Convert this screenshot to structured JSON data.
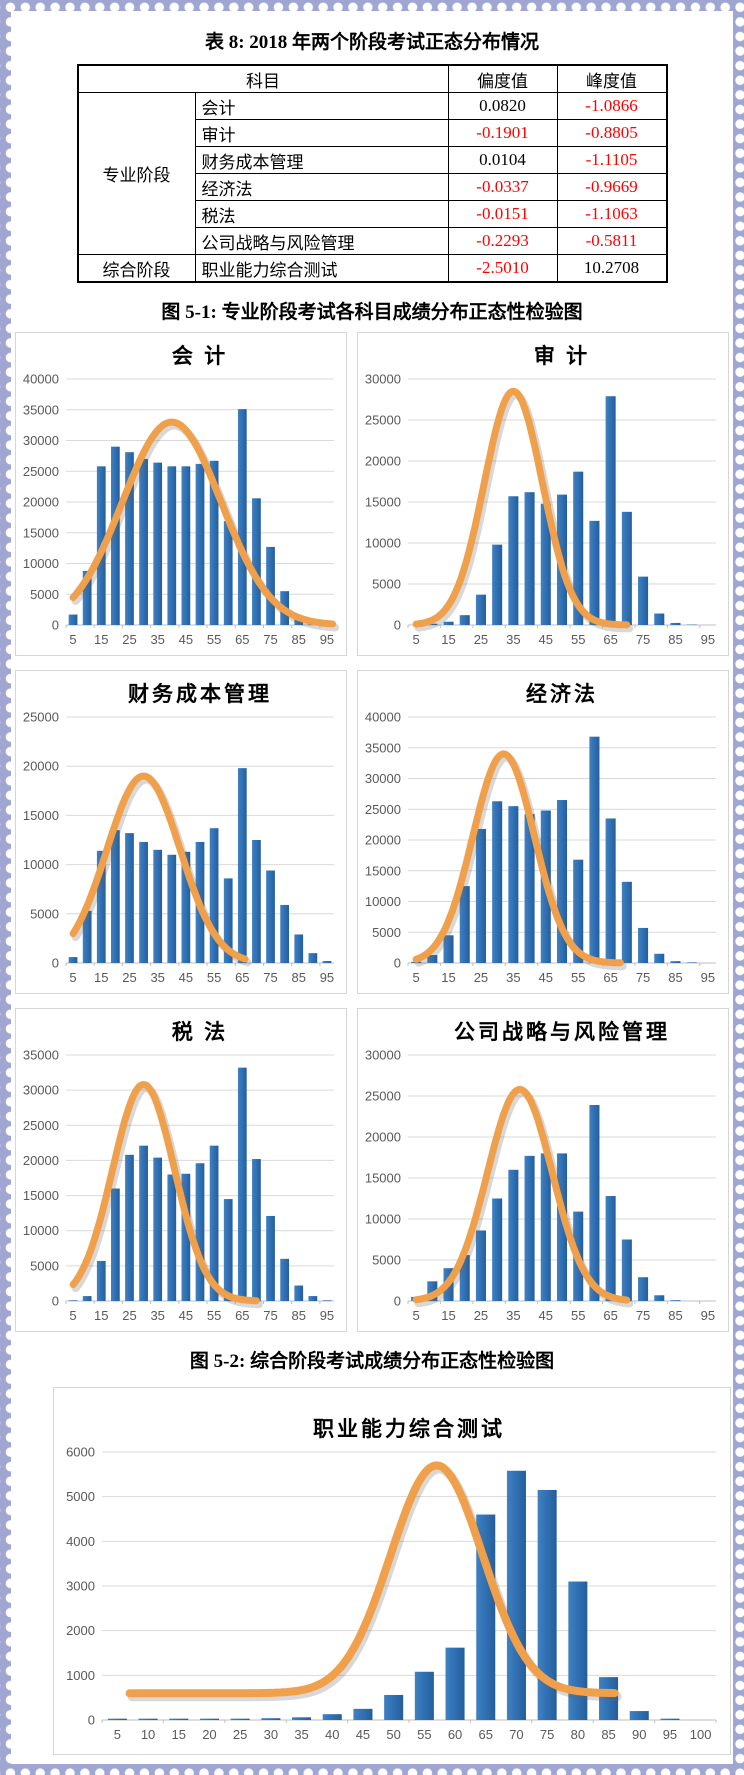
{
  "table": {
    "title": "表 8: 2018 年两个阶段考试正态分布情况",
    "headers": {
      "subject": "科目",
      "skewness": "偏度值",
      "kurtosis": "峰度值"
    },
    "stages": [
      {
        "label": "专业阶段",
        "rows": [
          {
            "subject": "会计",
            "skewness": "0.0820",
            "kurtosis": "-1.0866"
          },
          {
            "subject": "审计",
            "skewness": "-0.1901",
            "kurtosis": "-0.8805"
          },
          {
            "subject": "财务成本管理",
            "skewness": "0.0104",
            "kurtosis": "-1.1105"
          },
          {
            "subject": "经济法",
            "skewness": "-0.0337",
            "kurtosis": "-0.9669"
          },
          {
            "subject": "税法",
            "skewness": "-0.0151",
            "kurtosis": "-1.1063"
          },
          {
            "subject": "公司战略与风险管理",
            "skewness": "-0.2293",
            "kurtosis": "-0.5811"
          }
        ]
      },
      {
        "label": "综合阶段",
        "rows": [
          {
            "subject": "职业能力综合测试",
            "skewness": "-2.5010",
            "kurtosis": "10.2708"
          }
        ]
      }
    ]
  },
  "captions": {
    "fig1": "图 5-1: 专业阶段考试各科目成绩分布正态性检验图",
    "fig2": "图 5-2: 综合阶段考试成绩分布正态性检验图"
  },
  "colors": {
    "bar_light": "#3F81C3",
    "bar_mid": "#2F6EB0",
    "bar_dark": "#255E99",
    "curve": "#F0A04B",
    "grid": "#D9D9D9",
    "axis_line": "#BFBFBF",
    "axis_text": "#595959",
    "negative_value": "#FF0000"
  },
  "chart_data": [
    {
      "type": "bar",
      "title": "会 计",
      "categories": [
        5,
        10,
        15,
        20,
        25,
        30,
        35,
        40,
        45,
        50,
        55,
        60,
        65,
        70,
        75,
        80,
        85,
        90,
        95
      ],
      "values": [
        1700,
        8800,
        25800,
        29000,
        28100,
        27000,
        26400,
        25800,
        25800,
        26200,
        26700,
        16900,
        35100,
        20600,
        12700,
        5500,
        1200,
        300,
        100
      ],
      "ylim": [
        0,
        40000
      ],
      "ytick": 5000,
      "xtick_labels": [
        5,
        15,
        25,
        35,
        45,
        55,
        65,
        75,
        85,
        95
      ],
      "legend": "none",
      "grid": "horizontal",
      "curve": {
        "shape": "normal",
        "mean": 40,
        "sd": 17.5,
        "peak": 33000,
        "base": 0,
        "from": 5,
        "to": 97
      }
    },
    {
      "type": "bar",
      "title": "审 计",
      "categories": [
        5,
        10,
        15,
        20,
        25,
        30,
        35,
        40,
        45,
        50,
        55,
        60,
        65,
        70,
        75,
        80,
        85,
        90,
        95
      ],
      "values": [
        0,
        150,
        400,
        1200,
        3700,
        9800,
        15700,
        16200,
        14800,
        15900,
        18700,
        12700,
        27900,
        13800,
        5900,
        1400,
        250,
        50,
        0
      ],
      "ylim": [
        0,
        30000
      ],
      "ytick": 5000,
      "xtick_labels": [
        5,
        15,
        25,
        35,
        45,
        55,
        65,
        75,
        85,
        95
      ],
      "legend": "none",
      "grid": "horizontal",
      "curve": {
        "shape": "normal",
        "mean": 35,
        "sd": 9,
        "peak": 28500,
        "base": 0,
        "from": 5,
        "to": 70
      }
    },
    {
      "type": "bar",
      "title": "财务成本管理",
      "categories": [
        5,
        10,
        15,
        20,
        25,
        30,
        35,
        40,
        45,
        50,
        55,
        60,
        65,
        70,
        75,
        80,
        85,
        90,
        95
      ],
      "values": [
        600,
        5300,
        11400,
        13500,
        13200,
        12300,
        11500,
        11000,
        11300,
        12300,
        13700,
        8600,
        19800,
        12500,
        9400,
        5900,
        2900,
        1000,
        200
      ],
      "ylim": [
        0,
        25000
      ],
      "ytick": 5000,
      "xtick_labels": [
        5,
        15,
        25,
        35,
        45,
        55,
        65,
        75,
        85,
        95
      ],
      "legend": "none",
      "grid": "horizontal",
      "curve": {
        "shape": "normal",
        "mean": 30,
        "sd": 13,
        "peak": 19000,
        "base": 0,
        "from": 5,
        "to": 66
      }
    },
    {
      "type": "bar",
      "title": "经济法",
      "categories": [
        5,
        10,
        15,
        20,
        25,
        30,
        35,
        40,
        45,
        50,
        55,
        60,
        65,
        70,
        75,
        80,
        85,
        90,
        95
      ],
      "values": [
        200,
        1300,
        4500,
        12500,
        21800,
        26300,
        25500,
        24200,
        24800,
        26500,
        16800,
        36800,
        23500,
        13200,
        5700,
        1500,
        300,
        100,
        0
      ],
      "ylim": [
        0,
        40000
      ],
      "ytick": 5000,
      "xtick_labels": [
        5,
        15,
        25,
        35,
        45,
        55,
        65,
        75,
        85,
        95
      ],
      "legend": "none",
      "grid": "horizontal",
      "curve": {
        "shape": "normal",
        "mean": 32,
        "sd": 9.5,
        "peak": 34000,
        "base": 0,
        "from": 5,
        "to": 68
      }
    },
    {
      "type": "bar",
      "title": "税 法",
      "categories": [
        5,
        10,
        15,
        20,
        25,
        30,
        35,
        40,
        45,
        50,
        55,
        60,
        65,
        70,
        75,
        80,
        85,
        90,
        95
      ],
      "values": [
        100,
        700,
        5700,
        16000,
        20800,
        22100,
        20400,
        18000,
        18100,
        19600,
        22100,
        14500,
        33200,
        20200,
        12100,
        6000,
        2200,
        700,
        100
      ],
      "ylim": [
        0,
        35000
      ],
      "ytick": 5000,
      "xtick_labels": [
        5,
        15,
        25,
        35,
        45,
        55,
        65,
        75,
        85,
        95
      ],
      "legend": "none",
      "grid": "horizontal",
      "curve": {
        "shape": "normal",
        "mean": 30,
        "sd": 11,
        "peak": 30800,
        "base": 0,
        "from": 5,
        "to": 70
      }
    },
    {
      "type": "bar",
      "title": "公司战略与风险管理",
      "categories": [
        5,
        10,
        15,
        20,
        25,
        30,
        35,
        40,
        45,
        50,
        55,
        60,
        65,
        70,
        75,
        80,
        85,
        90,
        95
      ],
      "values": [
        500,
        2400,
        4000,
        5600,
        8600,
        12500,
        16000,
        17700,
        18000,
        18000,
        10900,
        23900,
        12800,
        7500,
        2900,
        700,
        100,
        0,
        0
      ],
      "ylim": [
        0,
        30000
      ],
      "ytick": 5000,
      "xtick_labels": [
        5,
        15,
        25,
        35,
        45,
        55,
        65,
        75,
        85,
        95
      ],
      "legend": "none",
      "grid": "horizontal",
      "curve": {
        "shape": "normal",
        "mean": 37,
        "sd": 10,
        "peak": 25800,
        "base": 0,
        "from": 5,
        "to": 70
      }
    },
    {
      "type": "bar",
      "title": "职业能力综合测试",
      "categories": [
        5,
        10,
        15,
        20,
        25,
        30,
        35,
        40,
        45,
        50,
        55,
        60,
        65,
        70,
        75,
        80,
        85,
        90,
        95,
        100
      ],
      "values": [
        30,
        30,
        30,
        30,
        30,
        40,
        60,
        130,
        250,
        560,
        1080,
        1620,
        4600,
        5580,
        5150,
        3100,
        960,
        200,
        30,
        0
      ],
      "ylim": [
        0,
        6000
      ],
      "ytick": 1000,
      "xtick_labels": [
        5,
        10,
        15,
        20,
        25,
        30,
        35,
        40,
        45,
        50,
        55,
        60,
        65,
        70,
        75,
        80,
        85,
        90,
        95,
        100
      ],
      "legend": "none",
      "grid": "horizontal",
      "curve": {
        "shape": "normal",
        "mean": 57,
        "sd": 7.5,
        "peak": 5700,
        "base": 600,
        "from": 7,
        "to": 86
      }
    }
  ]
}
